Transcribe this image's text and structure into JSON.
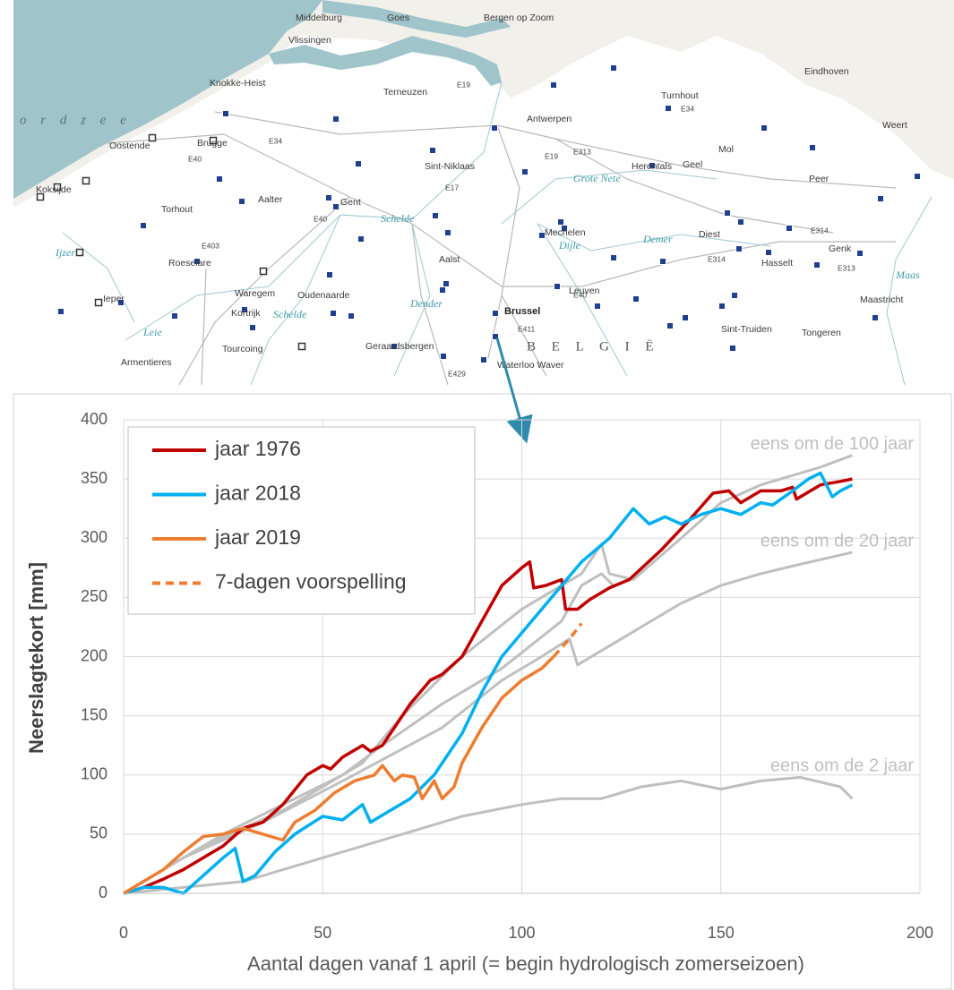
{
  "map": {
    "labels": [
      "Middelburg",
      "Goes",
      "Bergen op Zoom",
      "Vlissingen",
      "Knokke-Heist",
      "Terneuzen",
      "Antwerpen",
      "Turnhout",
      "Eindhoven",
      "Weert",
      "Oostende",
      "Brugge",
      "Sint-Niklaas",
      "Herentals",
      "Geel",
      "Mol",
      "Peer",
      "Koksijde",
      "Torhout",
      "Aalter",
      "Gent",
      "Roeselare",
      "Mechelen",
      "Diest",
      "Genk",
      "Hasselt",
      "Aalst",
      "Ieper",
      "Waregem",
      "Oudenaarde",
      "Kortrijk",
      "Leuven",
      "Brussel",
      "Maastricht",
      "Sint-Truiden",
      "Tongeren",
      "Tourcoing",
      "Geraardsbergen",
      "Armentieres",
      "Waterloo Waver",
      "B E L G I Ë",
      "o r d z e e",
      "Grote Nete",
      "Dijle",
      "Demer",
      "Schelde",
      "Leie",
      "Dender",
      "Schelde",
      "Ijzer",
      "Maas",
      "E34",
      "E40",
      "E17",
      "E19",
      "E313",
      "E34",
      "E40",
      "E40",
      "E314",
      "E19",
      "E313",
      "E314",
      "E429",
      "E403",
      "E411"
    ]
  },
  "chart_data": {
    "type": "line",
    "xlabel": "Aantal dagen vanaf 1 april (= begin hydrologisch zomerseizoen)",
    "ylabel": "Neerslagtekort [mm]",
    "xlim": [
      0,
      200
    ],
    "ylim": [
      0,
      400
    ],
    "xticks": [
      0,
      50,
      100,
      150,
      200
    ],
    "yticks": [
      0,
      50,
      100,
      150,
      200,
      250,
      300,
      350,
      400
    ],
    "grid": true,
    "legend": "upper left",
    "series": [
      {
        "name": "jaar 1976",
        "color": "#c00000",
        "linestyle": "solid",
        "x": [
          0,
          5,
          10,
          15,
          20,
          25,
          30,
          35,
          40,
          46,
          50,
          52,
          55,
          60,
          62,
          65,
          68,
          72,
          77,
          80,
          85,
          90,
          95,
          100,
          102,
          103,
          106,
          110,
          111,
          114,
          117,
          122,
          127,
          135,
          142,
          148,
          152,
          155,
          160,
          165,
          168,
          169,
          175,
          180,
          183
        ],
        "values": [
          0,
          5,
          12,
          20,
          30,
          40,
          55,
          60,
          75,
          100,
          108,
          105,
          115,
          125,
          120,
          125,
          140,
          160,
          180,
          185,
          200,
          230,
          260,
          275,
          280,
          258,
          260,
          265,
          240,
          240,
          248,
          258,
          265,
          290,
          315,
          338,
          340,
          330,
          340,
          340,
          343,
          333,
          345,
          348,
          350
        ]
      },
      {
        "name": "jaar 2018",
        "color": "#00b0f0",
        "linestyle": "solid",
        "x": [
          0,
          5,
          10,
          15,
          20,
          25,
          28,
          30,
          33,
          38,
          43,
          50,
          55,
          60,
          62,
          67,
          72,
          78,
          80,
          85,
          90,
          95,
          100,
          105,
          110,
          115,
          122,
          128,
          132,
          136,
          140,
          145,
          150,
          155,
          160,
          163,
          168,
          172,
          175,
          178,
          180,
          183
        ],
        "values": [
          0,
          5,
          5,
          0,
          15,
          30,
          38,
          10,
          15,
          35,
          50,
          65,
          62,
          75,
          60,
          70,
          80,
          100,
          110,
          135,
          170,
          200,
          220,
          240,
          260,
          280,
          300,
          325,
          312,
          318,
          312,
          320,
          325,
          320,
          330,
          328,
          340,
          350,
          355,
          335,
          340,
          345
        ]
      },
      {
        "name": "jaar 2019",
        "color": "#ed7d31",
        "linestyle": "solid",
        "x": [
          0,
          5,
          10,
          15,
          20,
          25,
          30,
          35,
          40,
          43,
          48,
          53,
          58,
          63,
          65,
          68,
          70,
          73,
          75,
          78,
          80,
          83,
          85,
          90,
          95,
          100,
          105,
          108
        ],
        "values": [
          0,
          10,
          20,
          35,
          48,
          50,
          55,
          50,
          45,
          60,
          70,
          85,
          95,
          100,
          108,
          95,
          100,
          98,
          80,
          95,
          80,
          90,
          110,
          140,
          165,
          180,
          190,
          200
        ]
      },
      {
        "name": "7-dagen voorspelling",
        "color": "#ed7d31",
        "linestyle": "dashed",
        "x": [
          108,
          112,
          115
        ],
        "values": [
          200,
          215,
          228
        ]
      }
    ],
    "reference_series": [
      {
        "name": "eens om de 100 jaar",
        "color": "#bfbfbf",
        "x": [
          0,
          20,
          40,
          60,
          70,
          85,
          100,
          115,
          120,
          122,
          128,
          140,
          150,
          160,
          175,
          183
        ],
        "values": [
          0,
          40,
          70,
          110,
          150,
          200,
          240,
          270,
          295,
          270,
          265,
          300,
          330,
          345,
          360,
          370
        ]
      },
      {
        "name": "eens om de 20 jaar",
        "color": "#bfbfbf",
        "x": [
          0,
          15,
          35,
          55,
          80,
          95,
          105,
          112,
          114,
          120,
          130,
          140,
          150,
          160,
          170,
          183
        ],
        "values": [
          0,
          30,
          60,
          95,
          140,
          180,
          200,
          215,
          193,
          205,
          225,
          245,
          260,
          270,
          278,
          288
        ]
      },
      {
        "name": "eens om de 2 jaar",
        "color": "#bfbfbf",
        "x": [
          0,
          15,
          30,
          50,
          70,
          85,
          100,
          110,
          120,
          130,
          140,
          150,
          160,
          170,
          180,
          183
        ],
        "values": [
          0,
          5,
          10,
          30,
          50,
          65,
          75,
          80,
          80,
          90,
          95,
          88,
          95,
          98,
          90,
          80
        ]
      },
      {
        "color": "#bfbfbf",
        "x": [
          0,
          25,
          40,
          55,
          65,
          80,
          95,
          110,
          115,
          120,
          123
        ],
        "values": [
          0,
          50,
          75,
          100,
          125,
          160,
          190,
          230,
          260,
          270,
          260
        ]
      }
    ]
  }
}
